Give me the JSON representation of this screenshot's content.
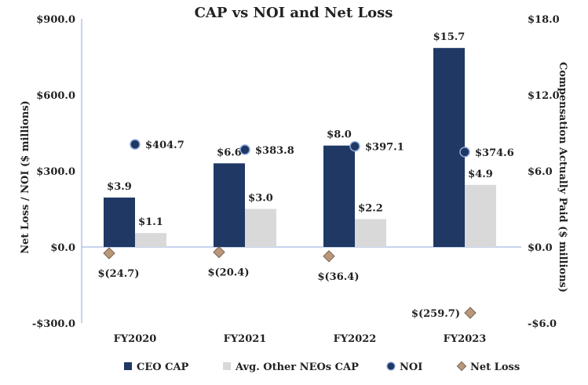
{
  "chart_data": {
    "type": "bar",
    "title": "CAP vs NOI and Net Loss",
    "categories": [
      "FY2020",
      "FY2021",
      "FY2022",
      "FY2023"
    ],
    "left_axis": {
      "label": "Net Loss / NOI ($ millions)",
      "range": [
        -300,
        900
      ],
      "ticks": [
        -300,
        0,
        300,
        600,
        900
      ],
      "tick_labels": [
        "-$300.0",
        "$0.0",
        "$300.0",
        "$600.0",
        "$900.0"
      ]
    },
    "right_axis": {
      "label": "Compensation Actually Paid ($ millions)",
      "range": [
        -6,
        18
      ],
      "ticks": [
        -6,
        0,
        6,
        12,
        18
      ],
      "tick_labels": [
        "-$6.0",
        "$0.0",
        "$6.0",
        "$12.0",
        "$18.0"
      ]
    },
    "series": [
      {
        "name": "CEO CAP",
        "kind": "bar",
        "axis": "right",
        "color": "#1f3864",
        "values": [
          3.9,
          6.6,
          8.0,
          15.7
        ],
        "labels": [
          "$3.9",
          "$6.6",
          "$8.0",
          "$15.7"
        ]
      },
      {
        "name": "Avg. Other NEOs CAP",
        "kind": "bar",
        "axis": "right",
        "color": "#d9d9d9",
        "values": [
          1.1,
          3.0,
          2.2,
          4.9
        ],
        "labels": [
          "$1.1",
          "$3.0",
          "$2.2",
          "$4.9"
        ]
      },
      {
        "name": "NOI",
        "kind": "marker",
        "axis": "left",
        "marker": "circle",
        "color": "#1f3864",
        "values": [
          404.7,
          383.8,
          397.1,
          374.6
        ],
        "labels": [
          "$404.7",
          "$383.8",
          "$397.1",
          "$374.6"
        ]
      },
      {
        "name": "Net Loss",
        "kind": "marker",
        "axis": "left",
        "marker": "diamond",
        "color": "#b8977a",
        "values": [
          -24.7,
          -20.4,
          -36.4,
          -259.7
        ],
        "labels": [
          "$(24.7)",
          "$(20.4)",
          "$(36.4)",
          "$(259.7)"
        ]
      }
    ],
    "legend": {
      "position": "bottom",
      "entries": [
        "CEO CAP",
        "Avg. Other NEOs CAP",
        "NOI",
        "Net Loss"
      ]
    },
    "grid": false
  }
}
